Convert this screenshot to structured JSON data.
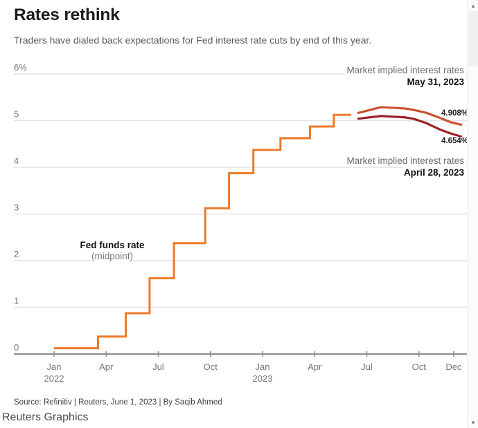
{
  "header": {
    "title": "Rates rethink",
    "subtitle": "Traders have dialed back expectations for Fed interest rate cuts by end of this year."
  },
  "annotations": {
    "may": {
      "heading": "Market implied interest rates",
      "date": "May 31, 2023"
    },
    "april": {
      "heading": "Market implied interest rates",
      "date": "April 28, 2023"
    },
    "fed": {
      "line1": "Fed funds rate",
      "line2": "(midpoint)"
    }
  },
  "chart_data": {
    "type": "line",
    "title": "Rates rethink",
    "x_unit": "months_since_jan_2022_decimal",
    "ylim": [
      0,
      6
    ],
    "grid": true,
    "legend_position": "annotations-on-chart",
    "colors": {
      "grid": "#e2e2e2",
      "axis": "#8c8c8c",
      "tick_text": "#757575"
    },
    "y_ticks": [
      {
        "value": 6,
        "label": "6%"
      },
      {
        "value": 5,
        "label": "5"
      },
      {
        "value": 4,
        "label": "4"
      },
      {
        "value": 3,
        "label": "3"
      },
      {
        "value": 2,
        "label": "2"
      },
      {
        "value": 1,
        "label": "1"
      },
      {
        "value": 0,
        "label": "0"
      }
    ],
    "x_ticks": [
      {
        "m": 0,
        "label": "Jan",
        "sub": "2022"
      },
      {
        "m": 3,
        "label": "Apr"
      },
      {
        "m": 6,
        "label": "Jul"
      },
      {
        "m": 9,
        "label": "Oct"
      },
      {
        "m": 12,
        "label": "Jan",
        "sub": "2023"
      },
      {
        "m": 15,
        "label": "Apr"
      },
      {
        "m": 18,
        "label": "Jul"
      },
      {
        "m": 21,
        "label": "Oct"
      },
      {
        "m": 23,
        "label": "Dec"
      }
    ],
    "series": [
      {
        "id": "fed-funds-rate",
        "name": "Fed funds rate (midpoint)",
        "type": "step",
        "color": "#EE7A29",
        "width": 3,
        "points": [
          [
            0,
            0.125
          ],
          [
            2.53,
            0.375
          ],
          [
            4.13,
            0.875
          ],
          [
            5.5,
            1.625
          ],
          [
            6.9,
            2.375
          ],
          [
            8.7,
            3.125
          ],
          [
            10.07,
            3.875
          ],
          [
            11.47,
            4.375
          ],
          [
            13.03,
            4.625
          ],
          [
            14.73,
            4.875
          ],
          [
            16.1,
            5.125
          ],
          [
            17.1,
            5.125
          ]
        ]
      },
      {
        "id": "may-31-2023",
        "name": "Market implied interest rates May 31, 2023",
        "type": "line",
        "color": "#C8512C",
        "width": 3.2,
        "end_label": "4.908%",
        "points": [
          [
            17.46,
            5.16
          ],
          [
            18.82,
            5.29
          ],
          [
            20.21,
            5.26
          ],
          [
            20.69,
            5.23
          ],
          [
            21.41,
            5.17
          ],
          [
            22.21,
            5.06
          ],
          [
            22.8,
            4.97
          ],
          [
            23.48,
            4.908
          ]
        ]
      },
      {
        "id": "april-28-2023",
        "name": "Market implied interest rates April 28, 2023",
        "type": "line",
        "color": "#9B2226",
        "width": 3.2,
        "end_label": "4.654%",
        "points": [
          [
            17.46,
            5.04
          ],
          [
            18.82,
            5.1
          ],
          [
            20.21,
            5.07
          ],
          [
            20.69,
            5.04
          ],
          [
            21.41,
            4.95
          ],
          [
            22.21,
            4.81
          ],
          [
            22.8,
            4.73
          ],
          [
            23.48,
            4.654
          ]
        ]
      }
    ]
  },
  "footer": {
    "source": "Source: Refinitiv | Reuters, June 1, 2023 | By Saqib Ahmed",
    "brand": "Reuters Graphics"
  },
  "icons": {
    "scroll_up": "▲",
    "scroll_down": "▼"
  }
}
